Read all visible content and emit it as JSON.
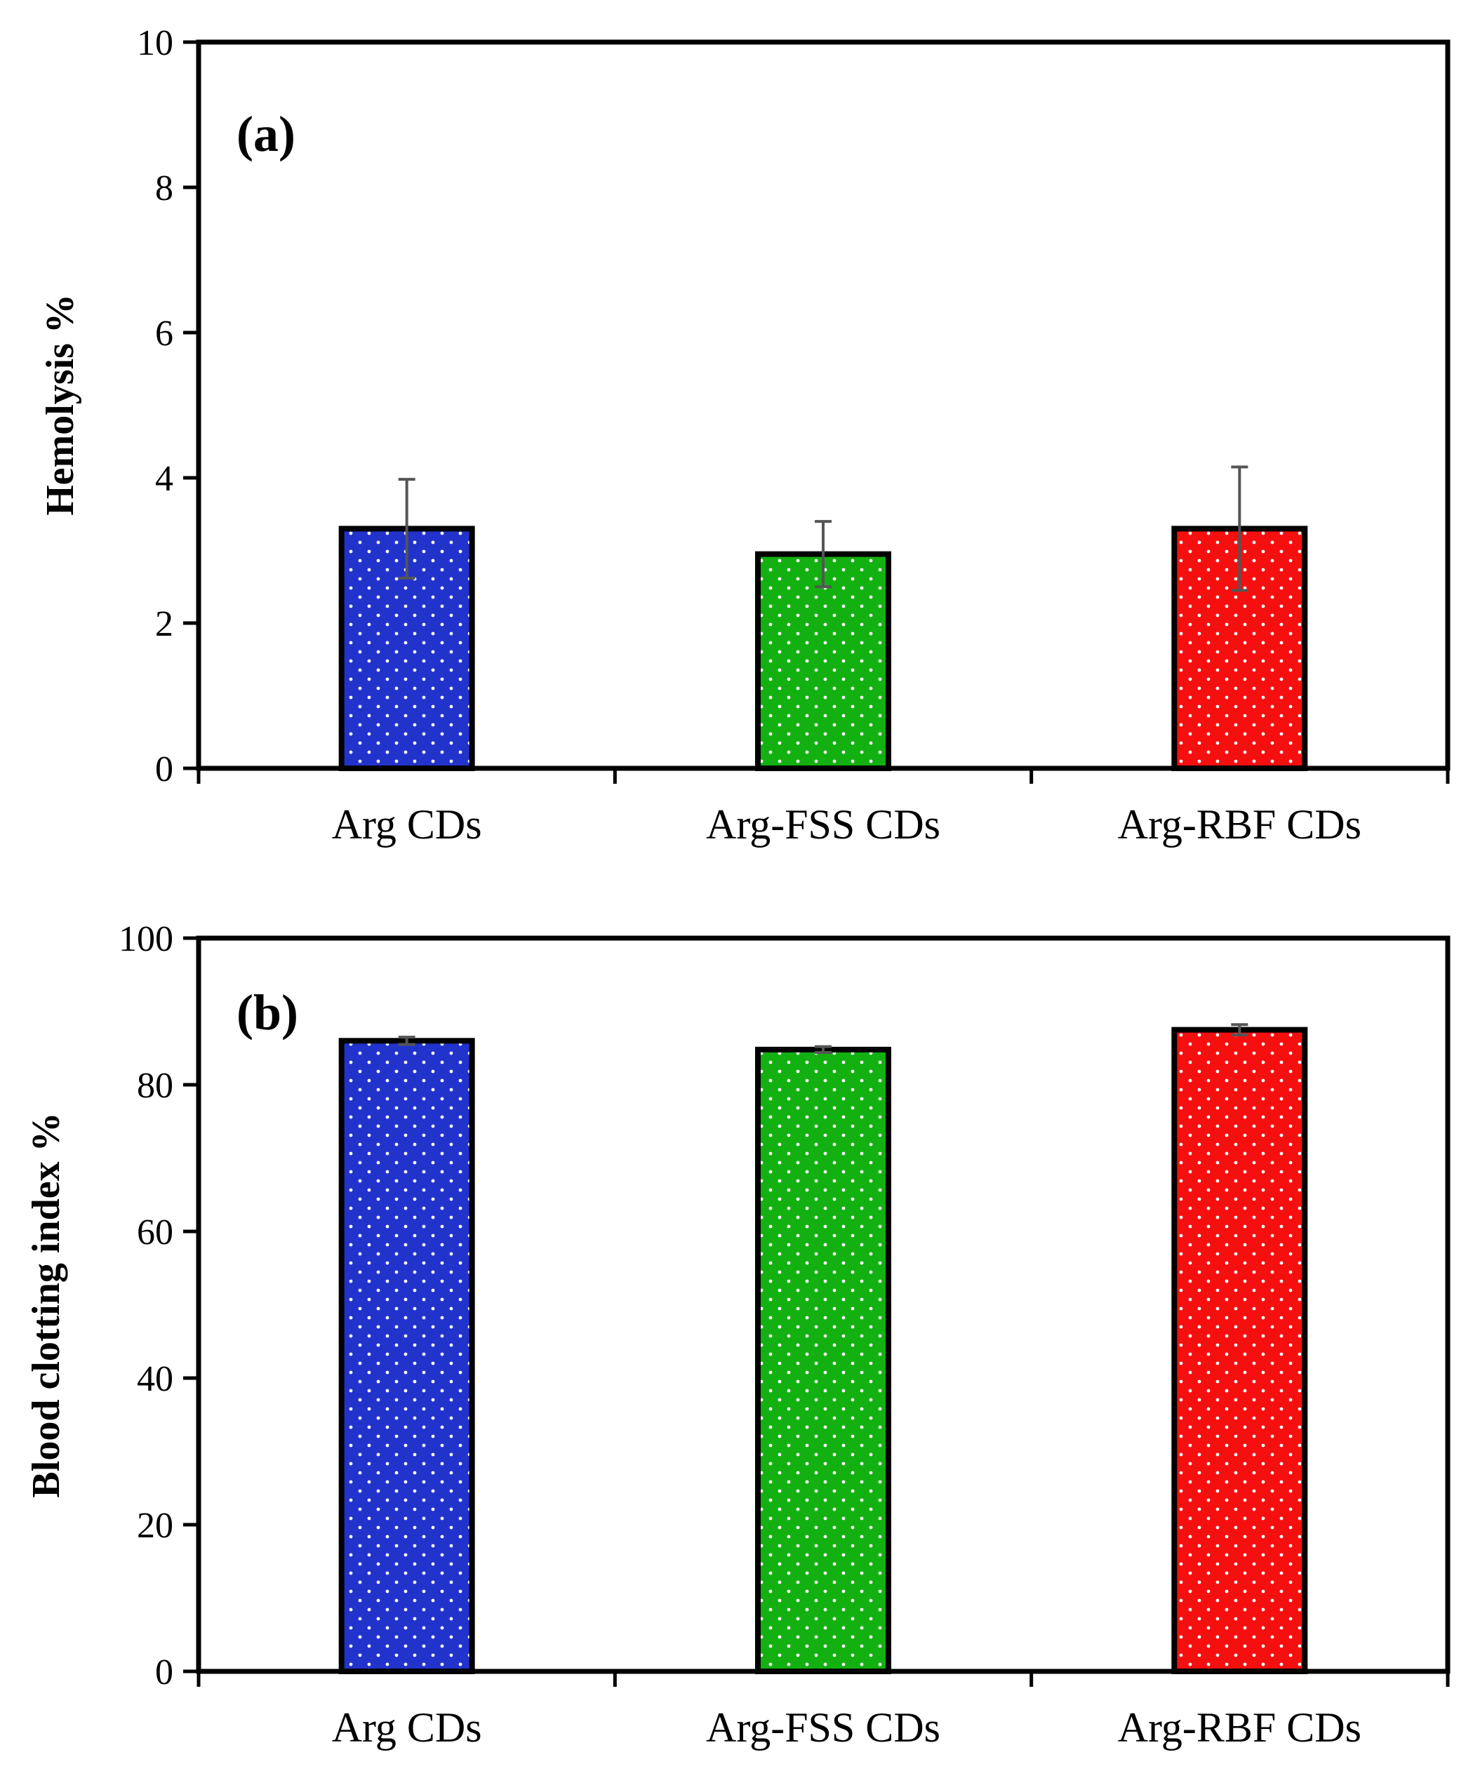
{
  "chart_data": [
    {
      "type": "bar",
      "panel_label": "(a)",
      "ylabel": "Hemolysis %",
      "xlabel": "",
      "ylim": [
        0,
        10
      ],
      "yticks": [
        "0",
        "2",
        "4",
        "6",
        "8",
        "10"
      ],
      "categories": [
        "Arg CDs",
        "Arg-FSS CDs",
        "Arg-RBF CDs"
      ],
      "values": [
        3.3,
        2.95,
        3.3
      ],
      "errors": [
        0.68,
        0.45,
        0.85
      ],
      "colors": [
        "#2233cc",
        "#13b011",
        "#f50f0f"
      ],
      "pattern": "dotted",
      "grid": false
    },
    {
      "type": "bar",
      "panel_label": "(b)",
      "ylabel": "Blood clotting index %",
      "xlabel": "",
      "ylim": [
        0,
        100
      ],
      "yticks": [
        "0",
        "20",
        "40",
        "60",
        "80",
        "100"
      ],
      "categories": [
        "Arg CDs",
        "Arg-FSS CDs",
        "Arg-RBF CDs"
      ],
      "values": [
        86.0,
        84.8,
        87.5
      ],
      "errors": [
        0.5,
        0.4,
        0.7
      ],
      "colors": [
        "#2233cc",
        "#13b011",
        "#f50f0f"
      ],
      "pattern": "dotted",
      "grid": false
    }
  ]
}
